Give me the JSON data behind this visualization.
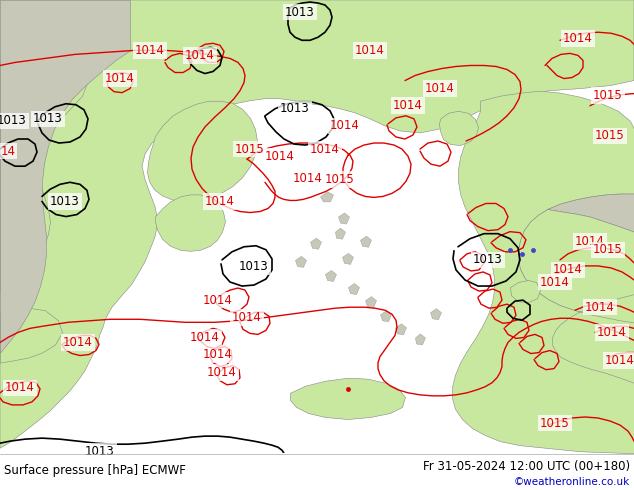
{
  "title_left": "Surface pressure [hPa] ECMWF",
  "title_right": "Fr 31-05-2024 12:00 UTC (00+180)",
  "watermark": "©weatheronline.co.uk",
  "fig_width": 6.34,
  "fig_height": 4.9,
  "dpi": 100,
  "bg_color": "#ffffff",
  "land_green": "#c8e8a0",
  "land_gray": "#c8c8b8",
  "sea_color": "#ffffff",
  "red": "#dd0000",
  "black": "#000000",
  "blue": "#4444cc",
  "bottom_bg": "#e0e0e0",
  "watermark_color": "#0000bb"
}
